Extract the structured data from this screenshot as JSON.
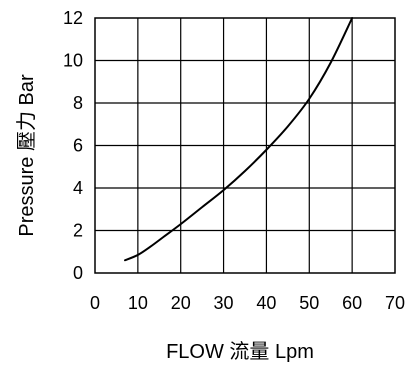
{
  "chart_data": {
    "type": "line",
    "xlabel": "FLOW 流量 Lpm",
    "ylabel": "Pressure 壓力 Bar",
    "xlim": [
      0,
      70
    ],
    "ylim": [
      0,
      12
    ],
    "xticks": [
      0,
      10,
      20,
      30,
      40,
      50,
      60,
      70
    ],
    "yticks": [
      0,
      2,
      4,
      6,
      8,
      10,
      12
    ],
    "xtick_labels": [
      "0",
      "10",
      "20",
      "30",
      "40",
      "50",
      "60",
      "70"
    ],
    "ytick_labels": [
      "0",
      "2",
      "4",
      "6",
      "8",
      "10",
      "12"
    ],
    "grid": true,
    "legend": "none",
    "series": [
      {
        "x": [
          7,
          10,
          13,
          16,
          20,
          25,
          30,
          35,
          40,
          45,
          50,
          55,
          60
        ],
        "y": [
          0.6,
          0.85,
          1.25,
          1.7,
          2.3,
          3.1,
          3.9,
          4.8,
          5.8,
          6.9,
          8.2,
          9.9,
          12.0
        ]
      }
    ]
  }
}
